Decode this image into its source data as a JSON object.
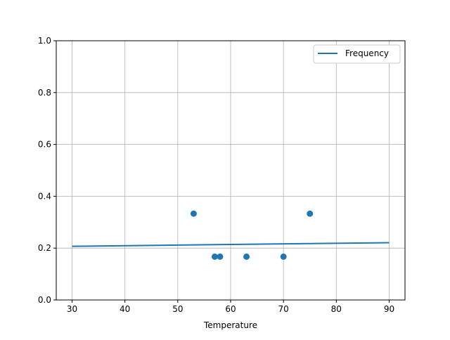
{
  "chart_data": {
    "type": "scatter",
    "title": "",
    "xlabel": "Temperature",
    "ylabel": "",
    "xlim": [
      27,
      93
    ],
    "ylim": [
      0,
      1
    ],
    "xticks": [
      30,
      40,
      50,
      60,
      70,
      80,
      90
    ],
    "yticks": [
      0.0,
      0.2,
      0.4,
      0.6,
      0.8,
      1.0
    ],
    "xtick_labels": [
      "30",
      "40",
      "50",
      "60",
      "70",
      "80",
      "90"
    ],
    "ytick_labels": [
      "0.0",
      "0.2",
      "0.4",
      "0.6",
      "0.8",
      "1.0"
    ],
    "grid": true,
    "legend_placement": "top-right",
    "color": "#1f77b4",
    "scatter": {
      "x": [
        53,
        57,
        58,
        63,
        70,
        75
      ],
      "y": [
        0.333,
        0.167,
        0.167,
        0.167,
        0.167,
        0.333
      ]
    },
    "series": [
      {
        "name": "Frequency",
        "type": "line",
        "x": [
          30,
          90
        ],
        "y": [
          0.207,
          0.221
        ]
      }
    ]
  }
}
